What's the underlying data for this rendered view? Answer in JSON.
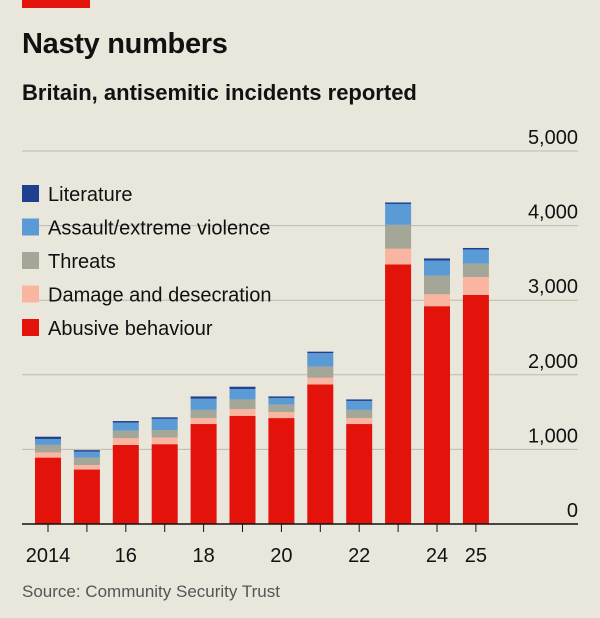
{
  "header": {
    "title": "Nasty numbers",
    "subtitle": "Britain, antisemitic incidents reported",
    "source": "Source: Community Security Trust",
    "accent_color": "#e3120b"
  },
  "chart_data": {
    "type": "bar",
    "stacked": true,
    "categories": [
      "2014",
      "2015",
      "2016",
      "2017",
      "2018",
      "2019",
      "2020",
      "2021",
      "2022",
      "2023",
      "2024",
      "2025"
    ],
    "x_tick_labels": [
      "2014",
      "",
      "16",
      "",
      "18",
      "",
      "20",
      "",
      "22",
      "",
      "24",
      "25"
    ],
    "y_ticks": [
      0,
      1000,
      2000,
      3000,
      4000,
      5000
    ],
    "y_tick_labels": [
      "0",
      "1,000",
      "2,000",
      "3,000",
      "4,000",
      "5,000"
    ],
    "ylim": [
      0,
      5000
    ],
    "y_axis_side": "right",
    "grid": true,
    "legend_position": "top-left",
    "series": [
      {
        "name": "Abusive behaviour",
        "color": "#e3120b",
        "values": [
          890,
          730,
          1060,
          1070,
          1340,
          1450,
          1420,
          1870,
          1340,
          3480,
          2920,
          3070
        ]
      },
      {
        "name": "Damage and desecration",
        "color": "#f9b59f",
        "values": [
          70,
          60,
          90,
          90,
          80,
          90,
          80,
          90,
          80,
          210,
          160,
          240
        ]
      },
      {
        "name": "Threats",
        "color": "#a4a697",
        "values": [
          100,
          100,
          100,
          100,
          110,
          130,
          100,
          150,
          110,
          320,
          250,
          180
        ]
      },
      {
        "name": "Assault/extreme violence",
        "color": "#5b9bd5",
        "values": [
          80,
          80,
          110,
          150,
          150,
          140,
          90,
          180,
          120,
          280,
          200,
          190
        ]
      },
      {
        "name": "Literature",
        "color": "#1f3f8f",
        "values": [
          30,
          20,
          20,
          20,
          30,
          30,
          20,
          20,
          20,
          20,
          30,
          20
        ]
      }
    ]
  }
}
